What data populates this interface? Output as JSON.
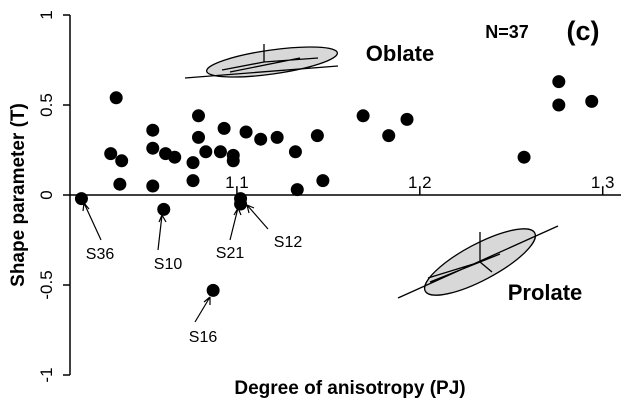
{
  "chart_data": {
    "type": "scatter",
    "xlabel": "Degree of anisotropy (PJ)",
    "ylabel": "Shape parameter (T)",
    "xlim": [
      1.01,
      1.31
    ],
    "ylim": [
      -1,
      1
    ],
    "xticks": [
      1.1,
      1.2,
      1.3
    ],
    "yticks": [
      1,
      0.5,
      0,
      -0.5,
      -1
    ],
    "color": "#000000",
    "x": [
      1.015,
      1.034,
      1.031,
      1.037,
      1.036,
      1.054,
      1.054,
      1.054,
      1.061,
      1.066,
      1.06,
      1.079,
      1.079,
      1.076,
      1.076,
      1.083,
      1.091,
      1.093,
      1.098,
      1.098,
      1.105,
      1.113,
      1.122,
      1.144,
      1.132,
      1.133,
      1.147,
      1.102,
      1.102,
      1.087,
      1.169,
      1.183,
      1.193,
      1.257,
      1.276,
      1.276,
      1.294
    ],
    "y": [
      -0.02,
      0.54,
      0.23,
      0.19,
      0.06,
      0.36,
      0.26,
      0.05,
      0.23,
      0.21,
      -0.08,
      0.44,
      0.32,
      0.18,
      0.08,
      0.24,
      0.24,
      0.37,
      0.22,
      0.19,
      0.35,
      0.31,
      0.32,
      0.33,
      0.24,
      0.03,
      0.08,
      -0.02,
      -0.05,
      -0.53,
      0.44,
      0.33,
      0.42,
      0.21,
      0.63,
      0.5,
      0.52
    ],
    "annotations": [
      "S36",
      "S10",
      "S21",
      "S12",
      "S16",
      "N=37",
      "(c)",
      "Oblate",
      "Prolate"
    ]
  }
}
